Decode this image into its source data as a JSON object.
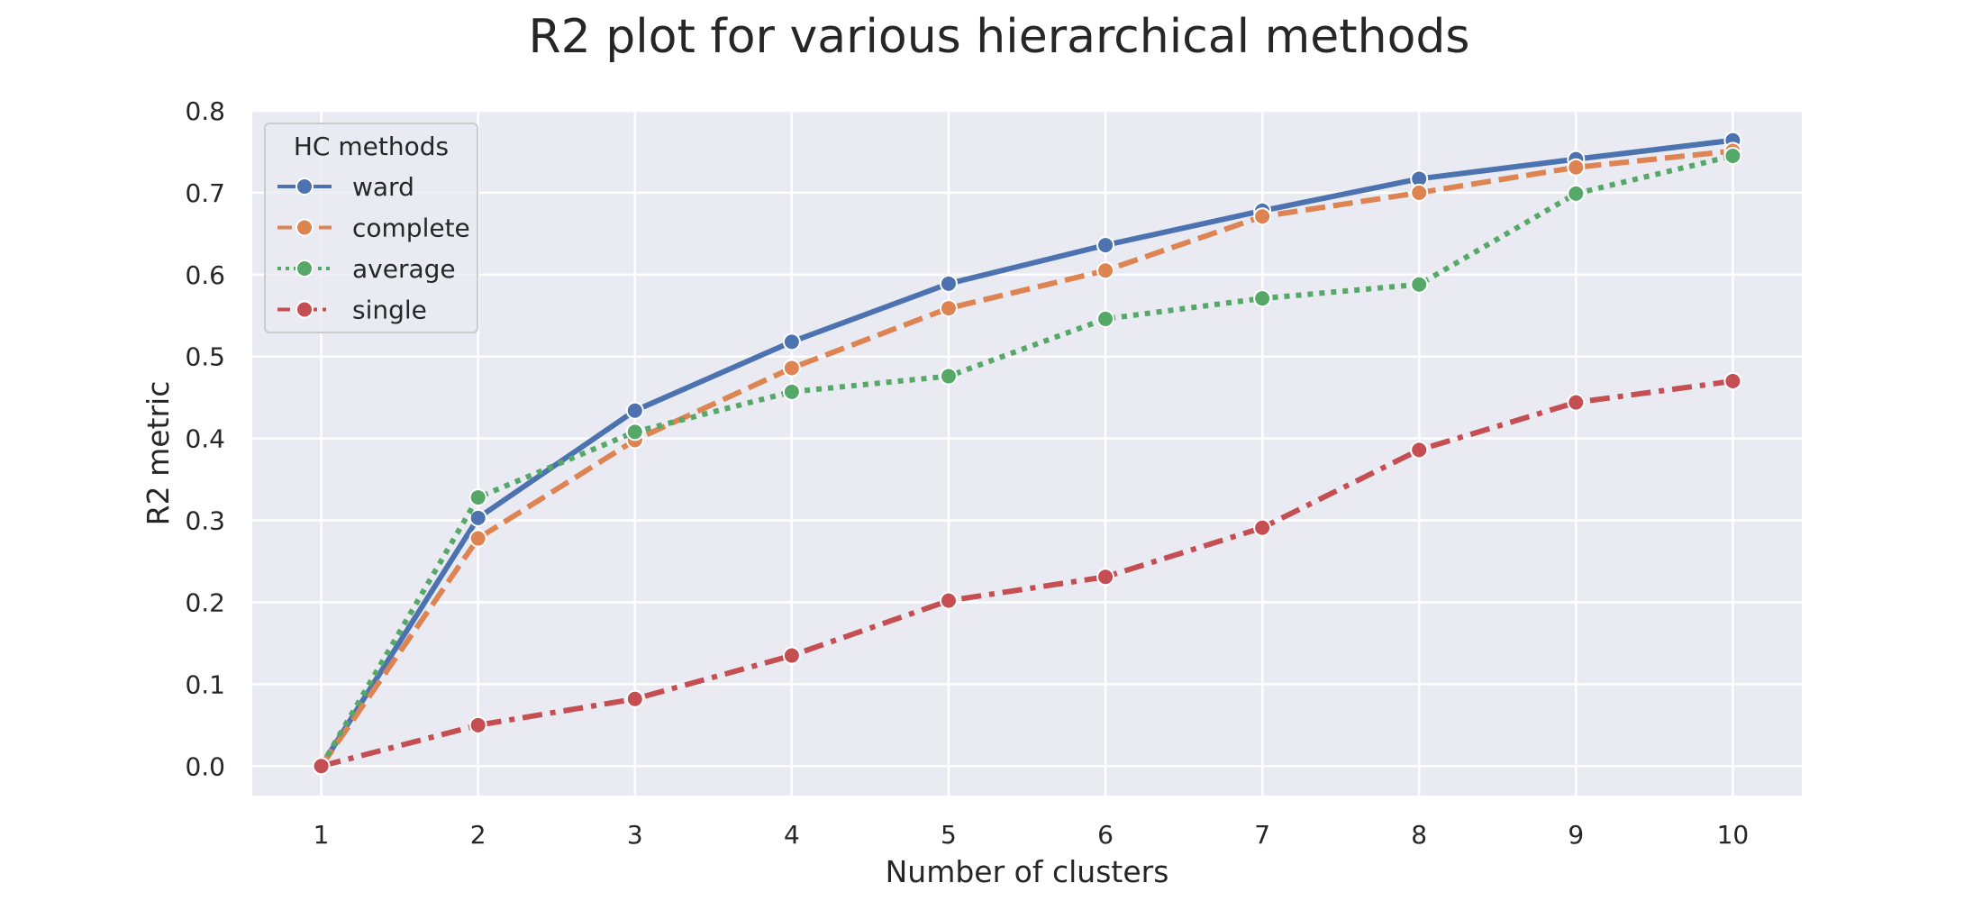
{
  "chart_data": {
    "type": "line",
    "title": "R2 plot for various hierarchical methods",
    "xlabel": "Number of clusters",
    "ylabel": "R2 metric",
    "x": [
      1,
      2,
      3,
      4,
      5,
      6,
      7,
      8,
      9,
      10
    ],
    "xlim": [
      0.56,
      10.44
    ],
    "ylim": [
      -0.036,
      0.8
    ],
    "yticks": [
      "0.0",
      "0.1",
      "0.2",
      "0.3",
      "0.4",
      "0.5",
      "0.6",
      "0.7",
      "0.8"
    ],
    "xticks": [
      "1",
      "2",
      "3",
      "4",
      "5",
      "6",
      "7",
      "8",
      "9",
      "10"
    ],
    "grid": true,
    "legend": {
      "title": "HC methods",
      "placement": "top-left"
    },
    "background": "#eaeaf2",
    "series": [
      {
        "name": "ward",
        "color": "#4c72b0",
        "linestyle": "solid",
        "values": [
          0.0,
          0.303,
          0.434,
          0.518,
          0.589,
          0.636,
          0.678,
          0.717,
          0.741,
          0.764
        ]
      },
      {
        "name": "complete",
        "color": "#dd8452",
        "linestyle": "dashed",
        "values": [
          0.0,
          0.278,
          0.398,
          0.486,
          0.559,
          0.605,
          0.671,
          0.7,
          0.731,
          0.751
        ]
      },
      {
        "name": "average",
        "color": "#55a868",
        "linestyle": "dotted",
        "values": [
          0.0,
          0.328,
          0.408,
          0.457,
          0.476,
          0.546,
          0.571,
          0.588,
          0.699,
          0.745
        ]
      },
      {
        "name": "single",
        "color": "#c44e52",
        "linestyle": "dashdot",
        "values": [
          0.0,
          0.05,
          0.082,
          0.135,
          0.202,
          0.231,
          0.291,
          0.386,
          0.444,
          0.47
        ]
      }
    ]
  }
}
